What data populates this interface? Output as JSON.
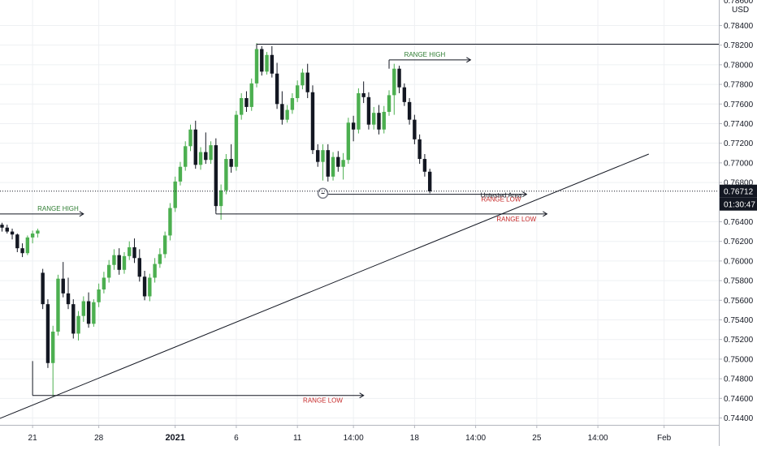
{
  "chart_data": {
    "type": "candlestick",
    "title": "",
    "xlabel": "",
    "ylabel": "",
    "currency_label": "USD",
    "ylim": [
      0.7433,
      0.7866
    ],
    "x_ticks": [
      {
        "label": "21",
        "bar": 6
      },
      {
        "label": "28",
        "bar": 19
      },
      {
        "label": "2021",
        "bar": 34,
        "bold": true
      },
      {
        "label": "6",
        "bar": 46
      },
      {
        "label": "11",
        "bar": 58
      },
      {
        "label": "14:00",
        "bar": 69
      },
      {
        "label": "18",
        "bar": 81
      },
      {
        "label": "14:00",
        "bar": 93
      },
      {
        "label": "25",
        "bar": 105
      },
      {
        "label": "14:00",
        "bar": 117
      },
      {
        "label": "Feb",
        "bar": 130
      }
    ],
    "y_ticks": [
      "0.78400",
      "0.78200",
      "0.78000",
      "0.77800",
      "0.77600",
      "0.77400",
      "0.77200",
      "0.77000",
      "0.76800",
      "0.76400",
      "0.76200",
      "0.76000",
      "0.75800",
      "0.75600",
      "0.75400",
      "0.75200",
      "0.75000",
      "0.74800",
      "0.74600",
      "0.74400"
    ],
    "y_tick_top_partial": "0.78600",
    "last_price": "0.76712",
    "countdown": "01:30:47",
    "colors": {
      "up": "#4caf50",
      "down": "#131722",
      "price_tag": "#131722",
      "range_high": "#2e7d32",
      "range_low": "#c62828",
      "grid": "#eef0f3"
    },
    "candles": [
      [
        0.7637,
        0.7639,
        0.763,
        0.7634
      ],
      [
        0.7634,
        0.7637,
        0.7628,
        0.763
      ],
      [
        0.763,
        0.7633,
        0.7622,
        0.7627
      ],
      [
        0.7627,
        0.7628,
        0.7609,
        0.7613
      ],
      [
        0.7613,
        0.7618,
        0.7604,
        0.7608
      ],
      [
        0.7608,
        0.7626,
        0.7606,
        0.7624
      ],
      [
        0.7624,
        0.7631,
        0.7618,
        0.7628
      ],
      [
        0.7628,
        0.7633,
        0.7624,
        0.7631
      ],
      [
        0.7588,
        0.7592,
        0.7551,
        0.7556
      ],
      [
        0.7556,
        0.7561,
        0.7491,
        0.7496
      ],
      [
        0.7496,
        0.7534,
        0.7462,
        0.7528
      ],
      [
        0.7528,
        0.7586,
        0.7524,
        0.7582
      ],
      [
        0.7582,
        0.7599,
        0.7563,
        0.7567
      ],
      [
        0.7567,
        0.7583,
        0.7551,
        0.7556
      ],
      [
        0.7556,
        0.7561,
        0.7521,
        0.7526
      ],
      [
        0.7526,
        0.7549,
        0.7519,
        0.7544
      ],
      [
        0.7544,
        0.7564,
        0.7538,
        0.7559
      ],
      [
        0.7559,
        0.7568,
        0.7532,
        0.7536
      ],
      [
        0.7536,
        0.7561,
        0.7533,
        0.7558
      ],
      [
        0.7558,
        0.7577,
        0.7553,
        0.7571
      ],
      [
        0.7571,
        0.7589,
        0.7567,
        0.7583
      ],
      [
        0.7583,
        0.7601,
        0.7578,
        0.7596
      ],
      [
        0.7596,
        0.7612,
        0.7591,
        0.7606
      ],
      [
        0.7606,
        0.7613,
        0.7586,
        0.7591
      ],
      [
        0.7591,
        0.7609,
        0.7587,
        0.7605
      ],
      [
        0.7605,
        0.762,
        0.7601,
        0.7614
      ],
      [
        0.7614,
        0.7623,
        0.7598,
        0.7603
      ],
      [
        0.7603,
        0.7612,
        0.7579,
        0.7584
      ],
      [
        0.7584,
        0.759,
        0.756,
        0.7564
      ],
      [
        0.7564,
        0.7587,
        0.7559,
        0.7583
      ],
      [
        0.7583,
        0.7603,
        0.7578,
        0.7597
      ],
      [
        0.7597,
        0.7613,
        0.7593,
        0.7607
      ],
      [
        0.7607,
        0.763,
        0.7603,
        0.7626
      ],
      [
        0.7626,
        0.7659,
        0.7621,
        0.7654
      ],
      [
        0.7654,
        0.7686,
        0.765,
        0.7681
      ],
      [
        0.7681,
        0.7701,
        0.7677,
        0.7696
      ],
      [
        0.7696,
        0.7722,
        0.7692,
        0.7717
      ],
      [
        0.7717,
        0.7739,
        0.7712,
        0.7734
      ],
      [
        0.7734,
        0.7743,
        0.7694,
        0.7698
      ],
      [
        0.7698,
        0.7716,
        0.7693,
        0.7711
      ],
      [
        0.7711,
        0.7731,
        0.7699,
        0.7703
      ],
      [
        0.7703,
        0.7722,
        0.7699,
        0.7718
      ],
      [
        0.7718,
        0.7725,
        0.7651,
        0.7656
      ],
      [
        0.7656,
        0.7678,
        0.7642,
        0.7672
      ],
      [
        0.7672,
        0.7709,
        0.7668,
        0.7704
      ],
      [
        0.7704,
        0.7719,
        0.769,
        0.7696
      ],
      [
        0.7696,
        0.7753,
        0.7692,
        0.7749
      ],
      [
        0.7749,
        0.7771,
        0.7744,
        0.7766
      ],
      [
        0.7766,
        0.7773,
        0.7752,
        0.7757
      ],
      [
        0.7757,
        0.7786,
        0.7753,
        0.7781
      ],
      [
        0.7781,
        0.7822,
        0.7777,
        0.7816
      ],
      [
        0.7816,
        0.7819,
        0.7789,
        0.7793
      ],
      [
        0.7793,
        0.7813,
        0.779,
        0.781
      ],
      [
        0.781,
        0.7819,
        0.7787,
        0.7791
      ],
      [
        0.7791,
        0.7802,
        0.7755,
        0.776
      ],
      [
        0.776,
        0.7773,
        0.7739,
        0.7744
      ],
      [
        0.7744,
        0.7759,
        0.7741,
        0.7754
      ],
      [
        0.7754,
        0.7771,
        0.775,
        0.7766
      ],
      [
        0.7766,
        0.7784,
        0.7762,
        0.7779
      ],
      [
        0.7779,
        0.7796,
        0.7775,
        0.7792
      ],
      [
        0.7792,
        0.7801,
        0.7766,
        0.7772
      ],
      [
        0.7772,
        0.7779,
        0.7709,
        0.7713
      ],
      [
        0.7713,
        0.7719,
        0.7696,
        0.7701
      ],
      [
        0.7701,
        0.7719,
        0.7682,
        0.7713
      ],
      [
        0.7713,
        0.7719,
        0.7681,
        0.7686
      ],
      [
        0.7686,
        0.7711,
        0.7682,
        0.7706
      ],
      [
        0.7706,
        0.7712,
        0.7691,
        0.7696
      ],
      [
        0.7696,
        0.771,
        0.7683,
        0.7703
      ],
      [
        0.7703,
        0.7746,
        0.7699,
        0.7741
      ],
      [
        0.7741,
        0.7748,
        0.7722,
        0.7734
      ],
      [
        0.7734,
        0.7776,
        0.773,
        0.7771
      ],
      [
        0.7771,
        0.7783,
        0.7761,
        0.7767
      ],
      [
        0.7767,
        0.7772,
        0.7734,
        0.7739
      ],
      [
        0.7739,
        0.7757,
        0.7734,
        0.7751
      ],
      [
        0.7751,
        0.7759,
        0.7729,
        0.7734
      ],
      [
        0.7734,
        0.7758,
        0.773,
        0.7752
      ],
      [
        0.7752,
        0.7774,
        0.7748,
        0.7769
      ],
      [
        0.7769,
        0.7801,
        0.7749,
        0.7796
      ],
      [
        0.7796,
        0.7799,
        0.7771,
        0.7777
      ],
      [
        0.7777,
        0.7781,
        0.7758,
        0.7762
      ],
      [
        0.7762,
        0.7766,
        0.7739,
        0.7744
      ],
      [
        0.7744,
        0.7749,
        0.7719,
        0.7724
      ],
      [
        0.7724,
        0.7729,
        0.7699,
        0.7704
      ],
      [
        0.7704,
        0.7709,
        0.7686,
        0.7691
      ],
      [
        0.7691,
        0.7694,
        0.7669,
        0.7671
      ]
    ],
    "annotations": {
      "range_high_label": "RANGE HIGH",
      "range_low_label": "RANGE LOW",
      "untested_area_label": "Untested Area",
      "range_lines": [
        {
          "kind": "high",
          "from_bar": -4,
          "to_bar": 16,
          "price": 0.7648,
          "label_bar": 11
        },
        {
          "kind": "high",
          "from_bar": 50,
          "to_bar": 152,
          "price": 0.7821,
          "arrow": false
        },
        {
          "kind": "high",
          "from_bar": 76,
          "to_bar": 92,
          "price": 0.7805,
          "label_bar": 83
        },
        {
          "kind": "low",
          "from_bar": 6,
          "to_bar": 71,
          "price": 0.7463,
          "label_bar": 63
        },
        {
          "kind": "low",
          "from_bar": 42,
          "to_bar": 107,
          "price": 0.7648,
          "label_bar": 101
        },
        {
          "kind": "low",
          "from_bar": 64,
          "to_bar": 103,
          "price": 0.7668,
          "label_bar": 98
        }
      ],
      "trendline": {
        "from": [
          -4,
          0.7432
        ],
        "to": [
          127,
          0.7709
        ]
      },
      "point_marker": {
        "bar": 63,
        "price": 0.7669
      }
    }
  }
}
